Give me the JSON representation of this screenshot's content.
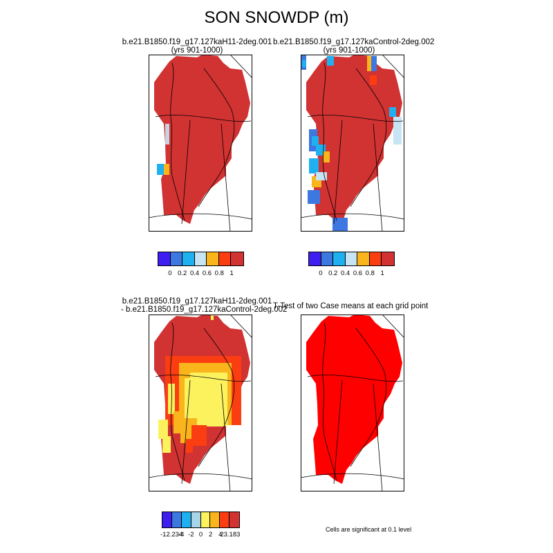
{
  "title": "SON SNOWDP (m)",
  "panels": [
    {
      "title_line1": "b.e21.B1850.f19_g17.127kaH11-2deg.001",
      "title_line2": "(yrs 901-1000)"
    },
    {
      "title_line1": "b.e21.B1850.f19_g17.127kaControl-2deg.002",
      "title_line2": "(yrs 901-1000)"
    },
    {
      "title_line1": "b.e21.B1850.f19_g17.127kaH11-2deg.001",
      "title_line2": "- b.e21.B1850.f19_g17.127kaControl-2deg.002"
    },
    {
      "title_line1": "T-Test of two Case means at each grid point",
      "title_line2": ""
    }
  ],
  "colorbars": {
    "snow": {
      "colors": [
        "#3f1ff0",
        "#3d77e0",
        "#1fb0f0",
        "#c6e4f4",
        "#f9b51b",
        "#fb3d12",
        "#d13232"
      ],
      "labels": [
        "0",
        "0.2",
        "0.4",
        "0.6",
        "0.8",
        "1"
      ]
    },
    "diff": {
      "colors": [
        "#3f1ff0",
        "#3d77e0",
        "#1fb0f0",
        "#a8d4e8",
        "#fbf25e",
        "#f9b51b",
        "#fb3d12",
        "#d13232"
      ],
      "labels": [
        "-12.234",
        "-4",
        "-2",
        "0",
        "2",
        "4",
        "23.183"
      ]
    }
  },
  "note": "Cells are significant at 0.1 level",
  "colors": {
    "snow_max": "#d13232",
    "significant": "#ff0000",
    "diff_positive_small": "#fbf25e",
    "diff_positive_mid": "#f9b51b",
    "diff_positive_high": "#fb3d12"
  }
}
